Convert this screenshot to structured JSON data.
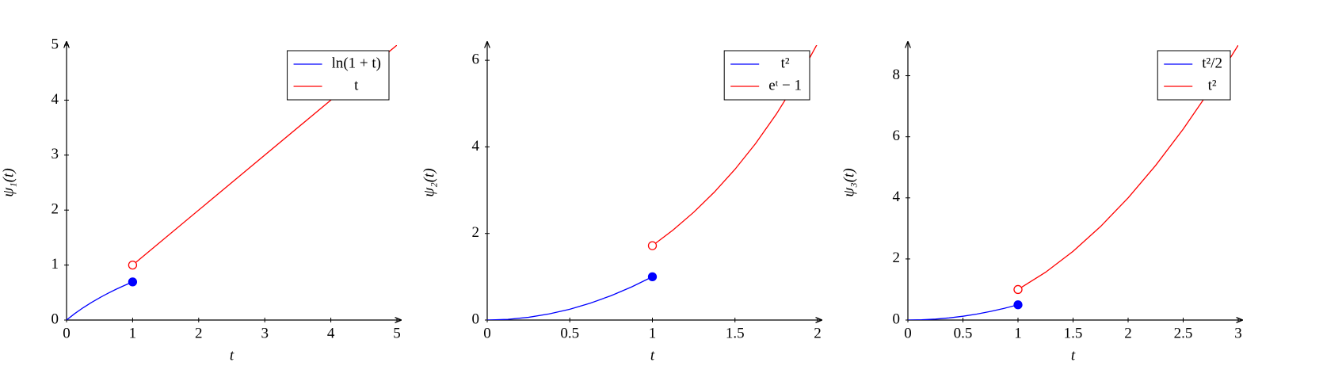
{
  "chart_data": [
    {
      "type": "line",
      "xlabel": "t",
      "ylabel": "ψ₁(t)",
      "xlim": [
        0,
        5
      ],
      "ylim": [
        0,
        5
      ],
      "xticks": [
        0,
        1,
        2,
        3,
        4,
        5
      ],
      "yticks": [
        0,
        1,
        2,
        3,
        4,
        5
      ],
      "legend": "top-right",
      "series": [
        {
          "name": "ln(1 + t)",
          "color": "#0000ff",
          "x": [
            0,
            0.125,
            0.25,
            0.375,
            0.5,
            0.625,
            0.75,
            0.875,
            1
          ],
          "values": [
            0,
            0.118,
            0.223,
            0.318,
            0.405,
            0.486,
            0.56,
            0.629,
            0.693
          ],
          "marker_index": 8,
          "marker_style": "filled"
        },
        {
          "name": "t",
          "color": "#ff0000",
          "x": [
            1,
            5
          ],
          "values": [
            1,
            5
          ],
          "marker_index": 0,
          "marker_style": "open"
        }
      ]
    },
    {
      "type": "line",
      "xlabel": "t",
      "ylabel": "ψ₂(t)",
      "xlim": [
        0,
        2
      ],
      "ylim": [
        0,
        6.35
      ],
      "xticks": [
        0,
        0.5,
        1,
        1.5,
        2
      ],
      "yticks": [
        0,
        2,
        4,
        6
      ],
      "legend": "top-right",
      "series": [
        {
          "name": "t²",
          "color": "#0000ff",
          "x": [
            0,
            0.125,
            0.25,
            0.375,
            0.5,
            0.625,
            0.75,
            0.875,
            1
          ],
          "values": [
            0,
            0.016,
            0.063,
            0.141,
            0.25,
            0.391,
            0.563,
            0.766,
            1
          ],
          "marker_index": 8,
          "marker_style": "filled"
        },
        {
          "name": "eᵗ − 1",
          "color": "#ff0000",
          "x": [
            1,
            1.125,
            1.25,
            1.375,
            1.5,
            1.625,
            1.75,
            1.875,
            2
          ],
          "values": [
            1.718,
            2.08,
            2.49,
            2.955,
            3.482,
            4.078,
            4.755,
            5.521,
            6.389
          ],
          "marker_index": 0,
          "marker_style": "open"
        }
      ]
    },
    {
      "type": "line",
      "xlabel": "t",
      "ylabel": "ψ₃(t)",
      "xlim": [
        0,
        3
      ],
      "ylim": [
        0,
        9
      ],
      "xticks": [
        0,
        0.5,
        1,
        1.5,
        2,
        2.5,
        3
      ],
      "yticks": [
        0,
        2,
        4,
        6,
        8
      ],
      "legend": "top-right",
      "series": [
        {
          "name": "t²/2",
          "color": "#0000ff",
          "x": [
            0,
            0.125,
            0.25,
            0.375,
            0.5,
            0.625,
            0.75,
            0.875,
            1
          ],
          "values": [
            0,
            0.008,
            0.031,
            0.07,
            0.125,
            0.195,
            0.281,
            0.383,
            0.5
          ],
          "marker_index": 8,
          "marker_style": "filled"
        },
        {
          "name": "t²",
          "color": "#ff0000",
          "x": [
            1,
            1.25,
            1.5,
            1.75,
            2,
            2.25,
            2.5,
            2.75,
            3
          ],
          "values": [
            1,
            1.563,
            2.25,
            3.063,
            4,
            5.063,
            6.25,
            7.563,
            9
          ],
          "marker_index": 0,
          "marker_style": "open"
        }
      ]
    }
  ]
}
